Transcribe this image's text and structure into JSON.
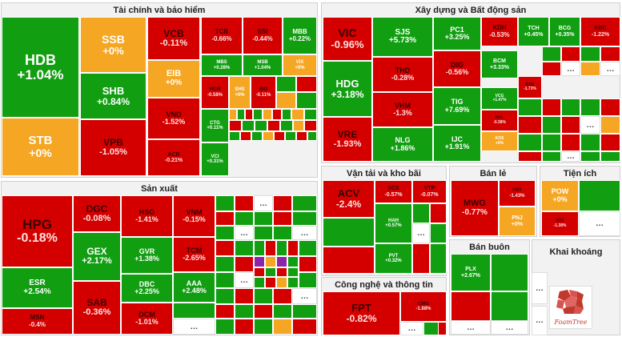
{
  "colors": {
    "up": "#119e11",
    "down": "#d40000",
    "flat": "#f5a623",
    "ceiling": "#8e24aa"
  },
  "chart_data": {
    "type": "treemap",
    "sectors": [
      {
        "name": "Tài chính và bảo hiểm",
        "stocks": [
          {
            "symbol": "HDB",
            "change": "+1.04%"
          },
          {
            "symbol": "SSB",
            "change": "+0%"
          },
          {
            "symbol": "SHB",
            "change": "+0.84%"
          },
          {
            "symbol": "STB",
            "change": "+0%"
          },
          {
            "symbol": "VPB",
            "change": "-1.05%"
          },
          {
            "symbol": "VCB",
            "change": "-0.11%"
          },
          {
            "symbol": "EIB",
            "change": "+0%"
          },
          {
            "symbol": "VND",
            "change": "-1.52%"
          },
          {
            "symbol": "ACB",
            "change": "-0.21%"
          },
          {
            "symbol": "TCB",
            "change": "-0.66%"
          },
          {
            "symbol": "SSI",
            "change": "-0.44%"
          },
          {
            "symbol": "MBB",
            "change": "+0.22%"
          },
          {
            "symbol": "MBS",
            "change": "+0.28%"
          },
          {
            "symbol": "MSB",
            "change": "+1.04%"
          },
          {
            "symbol": "VIX",
            "change": "+0%"
          },
          {
            "symbol": "HCM",
            "change": "-0.58%"
          },
          {
            "symbol": "SHS",
            "change": "+0%"
          },
          {
            "symbol": "BID",
            "change": "-0.11%"
          },
          {
            "symbol": "CTG",
            "change": "+0.11%"
          },
          {
            "symbol": "VCI",
            "change": "+0.31%"
          }
        ]
      },
      {
        "name": "Xây dựng và Bất động sản",
        "stocks": [
          {
            "symbol": "VIC",
            "change": "-0.96%"
          },
          {
            "symbol": "HDG",
            "change": "+3.18%"
          },
          {
            "symbol": "VRE",
            "change": "-1.93%"
          },
          {
            "symbol": "SJS",
            "change": "+5.73%"
          },
          {
            "symbol": "THD",
            "change": "-0.28%"
          },
          {
            "symbol": "VHM",
            "change": "-1.3%"
          },
          {
            "symbol": "NLG",
            "change": "+1.86%"
          },
          {
            "symbol": "PC1",
            "change": "+3.25%"
          },
          {
            "symbol": "DIG",
            "change": "-0.56%"
          },
          {
            "symbol": "TIG",
            "change": "+7.69%"
          },
          {
            "symbol": "IJC",
            "change": "+1.91%"
          },
          {
            "symbol": "KDH",
            "change": "-0.53%"
          },
          {
            "symbol": "BCM",
            "change": "+3.33%"
          },
          {
            "symbol": "TCH",
            "change": "+0.45%"
          },
          {
            "symbol": "BCG",
            "change": "+0.35%"
          },
          {
            "symbol": "KBC",
            "change": "-1.22%"
          },
          {
            "symbol": "DXG",
            "change": "-1.73%"
          },
          {
            "symbol": "VCG",
            "change": "+1.47%"
          },
          {
            "symbol": "NVL",
            "change": "-0.38%"
          },
          {
            "symbol": "KOS",
            "change": "+0%"
          }
        ]
      },
      {
        "name": "Sản xuất",
        "stocks": [
          {
            "symbol": "HPG",
            "change": "-0.18%"
          },
          {
            "symbol": "ESR",
            "change": "+2.54%"
          },
          {
            "symbol": "MSN",
            "change": "-0.4%"
          },
          {
            "symbol": "DGC",
            "change": "-0.08%"
          },
          {
            "symbol": "GEX",
            "change": "+2.17%"
          },
          {
            "symbol": "SAB",
            "change": "-0.36%"
          },
          {
            "symbol": "HSG",
            "change": "-1.41%"
          },
          {
            "symbol": "GVR",
            "change": "+1.38%"
          },
          {
            "symbol": "DBC",
            "change": "+2.25%"
          },
          {
            "symbol": "DCM",
            "change": "-1.01%"
          },
          {
            "symbol": "VNM",
            "change": "-0.15%"
          },
          {
            "symbol": "TCM",
            "change": "-2.65%"
          },
          {
            "symbol": "AAA",
            "change": "+2.48%"
          }
        ]
      },
      {
        "name": "Vận tải và kho bãi",
        "stocks": [
          {
            "symbol": "ACV",
            "change": "-2.4%"
          },
          {
            "symbol": "SCS",
            "change": "-0.57%"
          },
          {
            "symbol": "VTP",
            "change": "-0.07%"
          },
          {
            "symbol": "HAH",
            "change": "+0.57%"
          },
          {
            "symbol": "PVT",
            "change": "+0.32%"
          }
        ]
      },
      {
        "name": "Bán lẻ",
        "stocks": [
          {
            "symbol": "MWG",
            "change": "-0.77%"
          },
          {
            "symbol": "FRT",
            "change": "-1.43%"
          },
          {
            "symbol": "PNJ",
            "change": "+0%"
          }
        ]
      },
      {
        "name": "Tiện ích",
        "stocks": [
          {
            "symbol": "POW",
            "change": "+0%"
          },
          {
            "symbol": "NT2",
            "change": "-1.38%"
          }
        ]
      },
      {
        "name": "Công nghệ và thông tin",
        "stocks": [
          {
            "symbol": "FPT",
            "change": "-0.82%"
          },
          {
            "symbol": "CMG",
            "change": "-1.88%"
          }
        ]
      },
      {
        "name": "Bán buôn",
        "stocks": [
          {
            "symbol": "PLX",
            "change": "+2.67%"
          }
        ]
      },
      {
        "name": "Khai khoáng",
        "stocks": []
      }
    ],
    "more_label": "…",
    "brand": "FoamTree"
  }
}
